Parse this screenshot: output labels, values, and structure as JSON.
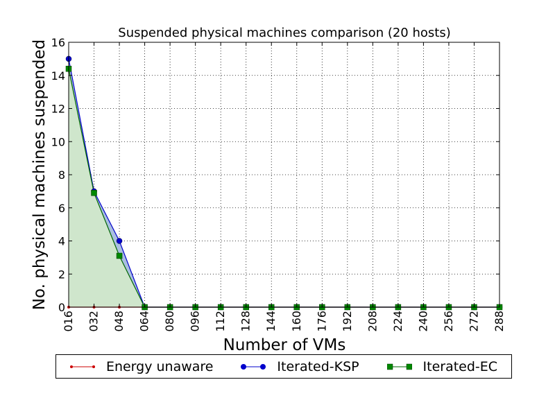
{
  "chart_data": {
    "type": "line",
    "title": "Suspended physical machines comparison (20 hosts)",
    "xlabel": "Number of VMs",
    "ylabel": "No. physical machines suspended",
    "x": [
      16,
      32,
      48,
      64,
      80,
      96,
      112,
      128,
      144,
      160,
      176,
      192,
      208,
      224,
      240,
      256,
      272,
      288
    ],
    "x_tick_labels": [
      "016",
      "032",
      "048",
      "064",
      "080",
      "096",
      "112",
      "128",
      "144",
      "160",
      "176",
      "192",
      "208",
      "224",
      "240",
      "256",
      "272",
      "288"
    ],
    "xlim": [
      16,
      288
    ],
    "ylim": [
      0,
      16
    ],
    "y_ticks": [
      0,
      2,
      4,
      6,
      8,
      10,
      12,
      14,
      16
    ],
    "grid": true,
    "legend_position": "bottom",
    "series": [
      {
        "name": "Energy unaware",
        "color": "#cc0000",
        "marker": "dot",
        "values": [
          0,
          0,
          0,
          0,
          0,
          0,
          0,
          0,
          0,
          0,
          0,
          0,
          0,
          0,
          0,
          0,
          0,
          0
        ]
      },
      {
        "name": "Iterated-KSP",
        "color": "#0000cc",
        "marker": "circle",
        "fill": "#a9bfe0",
        "values": [
          15,
          7,
          4,
          0,
          0,
          0,
          0,
          0,
          0,
          0,
          0,
          0,
          0,
          0,
          0,
          0,
          0,
          0
        ]
      },
      {
        "name": "Iterated-EC",
        "color": "#006600",
        "marker": "square",
        "fill": "#cfe6cc",
        "values": [
          14.4,
          6.9,
          3.1,
          0,
          0,
          0,
          0,
          0,
          0,
          0,
          0,
          0,
          0,
          0,
          0,
          0,
          0,
          0
        ]
      }
    ]
  }
}
